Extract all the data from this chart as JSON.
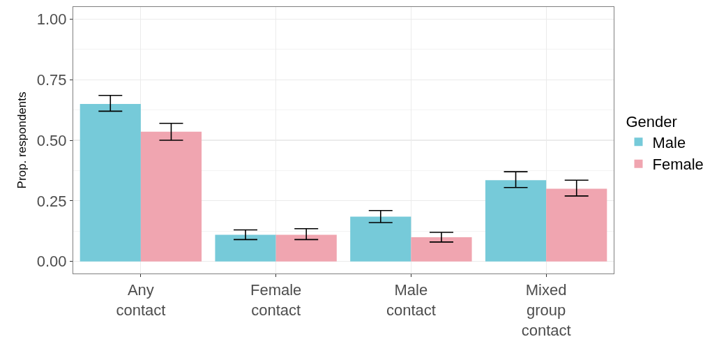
{
  "chart_data": {
    "type": "bar",
    "ylabel": "Prop. respondents",
    "legend_title": "Gender",
    "categories": [
      "Any contact",
      "Female contact",
      "Male contact",
      "Mixed group contact"
    ],
    "series": [
      {
        "name": "Male",
        "color": "#76cad9",
        "values": [
          0.65,
          0.11,
          0.185,
          0.335
        ],
        "errors": [
          [
            0.62,
            0.685
          ],
          [
            0.09,
            0.13
          ],
          [
            0.16,
            0.21
          ],
          [
            0.305,
            0.37
          ]
        ]
      },
      {
        "name": "Female",
        "color": "#f0a5b0",
        "values": [
          0.535,
          0.11,
          0.1,
          0.3
        ],
        "errors": [
          [
            0.5,
            0.57
          ],
          [
            0.09,
            0.135
          ],
          [
            0.08,
            0.12
          ],
          [
            0.27,
            0.335
          ]
        ]
      }
    ],
    "ylim": [
      -0.05,
      1.05
    ],
    "yticks": [
      {
        "value": 0,
        "label": "0.00"
      },
      {
        "value": 0.25,
        "label": "0.25"
      },
      {
        "value": 0.5,
        "label": "0.50"
      },
      {
        "value": 0.75,
        "label": "0.75"
      },
      {
        "value": 1,
        "label": "1.00"
      }
    ],
    "grid": true,
    "legend": "right"
  }
}
